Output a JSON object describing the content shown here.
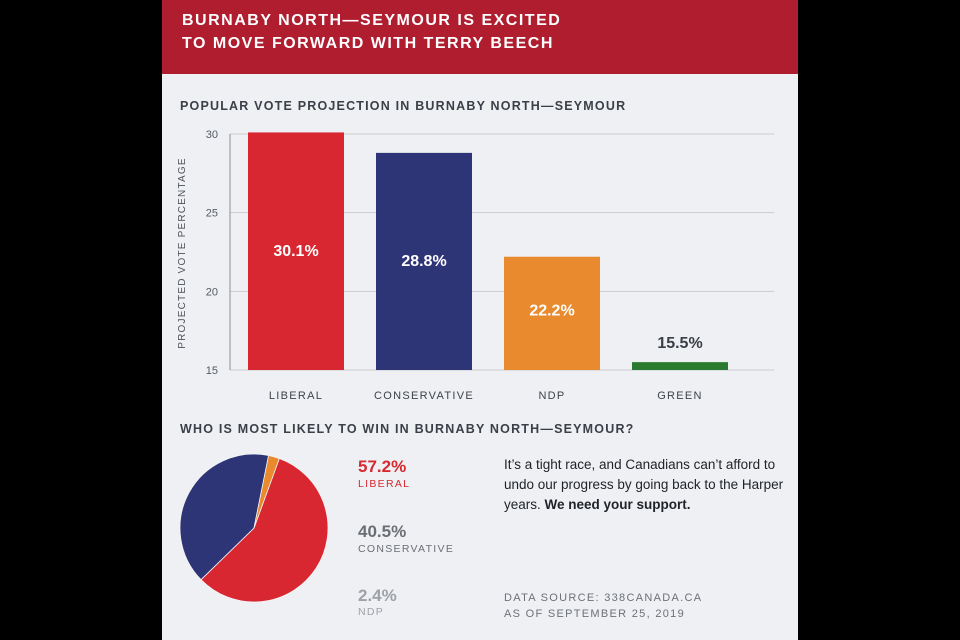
{
  "banner": {
    "line1": "BURNABY NORTH—SEYMOUR IS EXCITED",
    "line2": "TO MOVE FORWARD WITH TERRY BEECH"
  },
  "colors": {
    "liberal": "#d92732",
    "conservative": "#2e3577",
    "ndp": "#e88a2d",
    "green": "#2a7a2f",
    "banner": "#b01d2f"
  },
  "chart_data": [
    {
      "type": "bar",
      "title": "POPULAR VOTE PROJECTION IN BURNABY NORTH—SEYMOUR",
      "ylabel": "PROJECTED VOTE PERCENTAGE",
      "xlabel": "",
      "categories": [
        "LIBERAL",
        "CONSERVATIVE",
        "NDP",
        "GREEN"
      ],
      "values": [
        30.1,
        28.8,
        22.2,
        15.5
      ],
      "labels": [
        "30.1%",
        "28.8%",
        "22.2%",
        "15.5%"
      ],
      "ylim": [
        15,
        30
      ],
      "yticks": [
        "15",
        "20",
        "25",
        "30"
      ],
      "grid": true
    },
    {
      "type": "pie",
      "title": "WHO IS MOST LIKELY TO WIN IN BURNABY NORTH—SEYMOUR?",
      "categories": [
        "LIBERAL",
        "CONSERVATIVE",
        "NDP"
      ],
      "values": [
        57.2,
        40.5,
        2.4
      ],
      "labels": [
        "57.2%",
        "40.5%",
        "2.4%"
      ]
    }
  ],
  "message": {
    "body": "It’s a tight race, and Canadians can’t afford to undo our progress by going back to the Harper years.",
    "emphasis": "We need your support."
  },
  "source": {
    "line1": "DATA SOURCE: 338CANADA.CA",
    "line2": "AS OF SEPTEMBER 25, 2019"
  }
}
